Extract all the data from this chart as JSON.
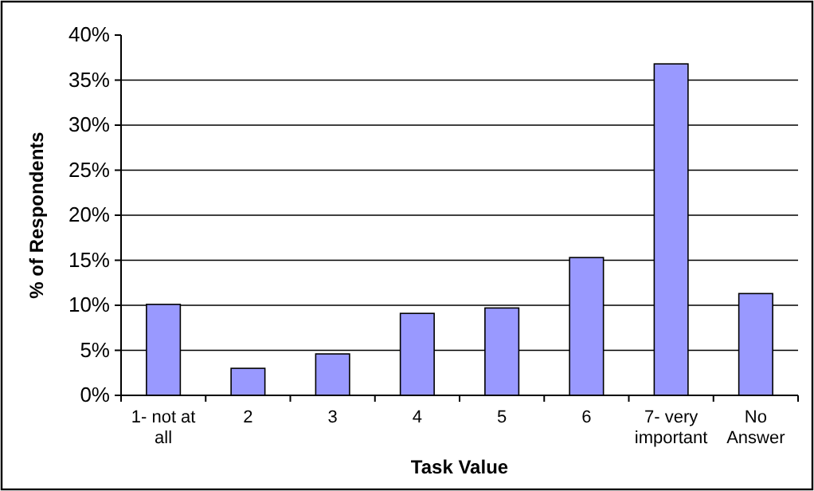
{
  "chart_data": {
    "type": "bar",
    "xlabel": "Task Value",
    "ylabel": "% of Respondents",
    "categories": [
      "1- not at all",
      "2",
      "3",
      "4",
      "5",
      "6",
      "7- very important",
      "No Answer"
    ],
    "values": [
      10.1,
      3.0,
      4.6,
      9.1,
      9.7,
      15.3,
      36.8,
      11.3
    ],
    "color": "#9999ff",
    "ylim": [
      0,
      40
    ],
    "yticks": [
      {
        "value": 0,
        "label": "0%"
      },
      {
        "value": 5,
        "label": "5%"
      },
      {
        "value": 10,
        "label": "10%"
      },
      {
        "value": 15,
        "label": "15%"
      },
      {
        "value": 20,
        "label": "20%"
      },
      {
        "value": 25,
        "label": "25%"
      },
      {
        "value": 30,
        "label": "30%"
      },
      {
        "value": 35,
        "label": "35%"
      },
      {
        "value": 40,
        "label": "40%"
      }
    ],
    "grid": "y"
  }
}
